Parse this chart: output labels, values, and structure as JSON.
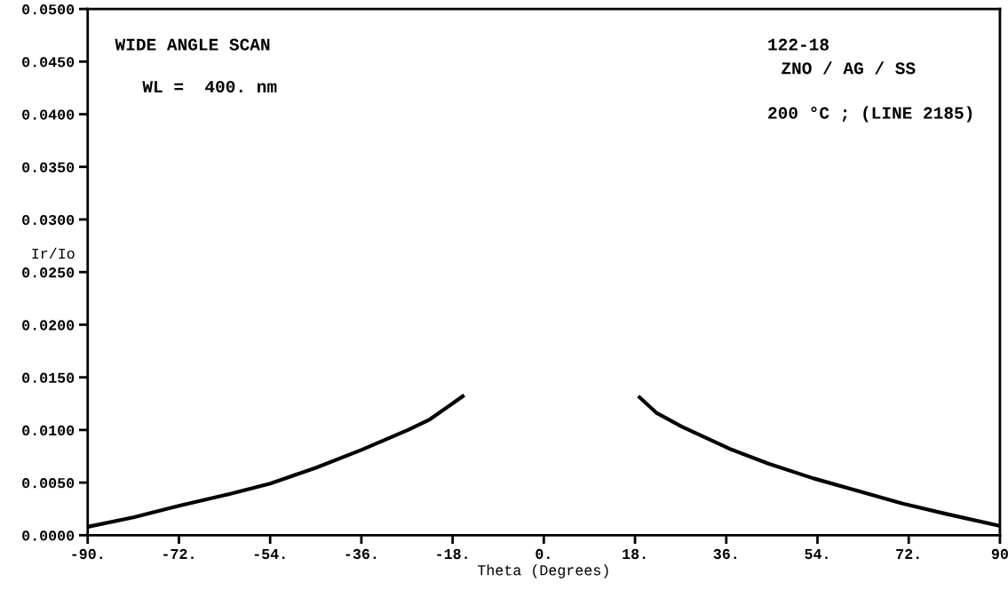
{
  "chart_data": {
    "type": "line",
    "xlabel": "Theta (Degrees)",
    "ylabel": "Ir/Io",
    "annotations": [
      "WIDE ANGLE SCAN",
      "WL =  400. nm",
      "122-18",
      "ZNO / AG / SS",
      "200 °C ; (LINE 2185)"
    ],
    "series": [
      {
        "color": "#000000",
        "x": [
          -90,
          -81,
          -72,
          -63,
          -54,
          -45,
          -36,
          -26.8,
          -22.5,
          -16.0,
          0,
          18.9,
          22.3,
          27.3,
          36.7,
          44.3,
          53.2,
          62,
          70.8,
          79.6,
          89.8
        ],
        "values": [
          0.0008,
          0.0017,
          0.0028,
          0.0038,
          0.0049,
          0.0064,
          0.0081,
          0.01,
          0.011,
          0.0132,
          null,
          0.0131,
          0.0116,
          0.0103,
          0.0082,
          0.0068,
          0.0054,
          0.0042,
          0.003,
          0.002,
          0.0009
        ]
      }
    ],
    "xlim": [
      -90,
      90
    ],
    "xticks": [
      {
        "value": -90,
        "label": "-90."
      },
      {
        "value": -72,
        "label": "-72."
      },
      {
        "value": -54,
        "label": "-54."
      },
      {
        "value": -36,
        "label": "-36."
      },
      {
        "value": -18,
        "label": "-18."
      },
      {
        "value": 0,
        "label": "0."
      },
      {
        "value": 18,
        "label": "18."
      },
      {
        "value": 36,
        "label": "36."
      },
      {
        "value": 54,
        "label": "54."
      },
      {
        "value": 72,
        "label": "72."
      },
      90
    ],
    "ylim": [
      0,
      0.05
    ],
    "yticks": [
      {
        "value": 0,
        "label": "0.0000"
      },
      {
        "value": 0.005,
        "label": "0.0050"
      },
      {
        "value": 0.01,
        "label": "0.0100"
      },
      {
        "value": 0.015,
        "label": "0.0150"
      },
      {
        "value": 0.02,
        "label": "0.0200"
      },
      {
        "value": 0.025,
        "label": "0.0250"
      },
      {
        "value": 0.03,
        "label": "0.0300"
      },
      {
        "value": 0.035,
        "label": "0.0350"
      },
      {
        "value": 0.04,
        "label": "0.0400"
      },
      {
        "value": 0.045,
        "label": "0.0450"
      },
      {
        "value": 0.05,
        "label": "0.0500"
      }
    ],
    "grid": false,
    "legend": false,
    "marker": "none",
    "line_style": "solid"
  }
}
